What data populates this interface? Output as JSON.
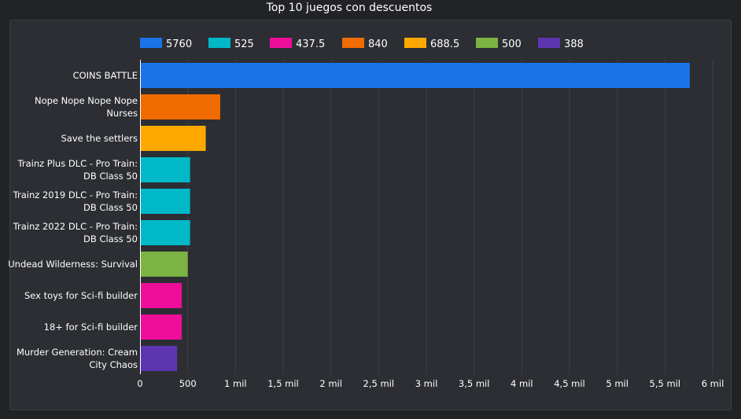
{
  "chart_data": {
    "type": "bar",
    "orientation": "horizontal",
    "title": "Top 10 juegos con descuentos",
    "categories": [
      "COINS BATTLE",
      "Nope Nope Nope Nope Nurses",
      "Save the settlers",
      "Trainz Plus DLC - Pro Train: DB Class 50",
      "Trainz 2019 DLC - Pro Train: DB Class 50",
      "Trainz 2022 DLC - Pro Train: DB Class 50",
      "Undead Wilderness: Survival",
      "Sex toys for Sci-fi builder",
      "18+ for Sci-fi builder",
      "Murder Generation: Cream City Chaos"
    ],
    "category_lines": [
      [
        "COINS BATTLE"
      ],
      [
        "Nope Nope Nope Nope",
        "Nurses"
      ],
      [
        "Save the settlers"
      ],
      [
        "Trainz Plus DLC - Pro Train:",
        "DB Class 50"
      ],
      [
        "Trainz 2019 DLC - Pro Train:",
        "DB Class 50"
      ],
      [
        "Trainz 2022 DLC - Pro Train:",
        "DB Class 50"
      ],
      [
        "Undead Wilderness: Survival"
      ],
      [
        "Sex toys for Sci-fi builder"
      ],
      [
        "18+ for Sci-fi builder"
      ],
      [
        "Murder Generation: Cream",
        "City Chaos"
      ]
    ],
    "values": [
      5760,
      840,
      688.5,
      525,
      525,
      525,
      500,
      437.5,
      437.5,
      388
    ],
    "bar_colors": [
      "#1a73e8",
      "#f06c00",
      "#ffa900",
      "#00b8c8",
      "#00b8c8",
      "#00b8c8",
      "#7cb342",
      "#ee0e9a",
      "#ee0e9a",
      "#5e35b1"
    ],
    "legend": [
      {
        "label": "5760",
        "color": "#1a73e8"
      },
      {
        "label": "525",
        "color": "#00b8c8"
      },
      {
        "label": "437.5",
        "color": "#ee0e9a"
      },
      {
        "label": "840",
        "color": "#f06c00"
      },
      {
        "label": "688.5",
        "color": "#ffa900"
      },
      {
        "label": "500",
        "color": "#7cb342"
      },
      {
        "label": "388",
        "color": "#5e35b1"
      }
    ],
    "legend_position": "top",
    "xlim": [
      0,
      6000
    ],
    "x_ticks": [
      0,
      500,
      1000,
      1500,
      2000,
      2500,
      3000,
      3500,
      4000,
      4500,
      5000,
      5500,
      6000
    ],
    "x_tick_labels": [
      "0",
      "500",
      "1 mil",
      "1,5 mil",
      "2 mil",
      "2,5 mil",
      "3 mil",
      "3,5 mil",
      "4 mil",
      "4,5 mil",
      "5 mil",
      "5,5 mil",
      "6 mil"
    ],
    "grid": true
  }
}
